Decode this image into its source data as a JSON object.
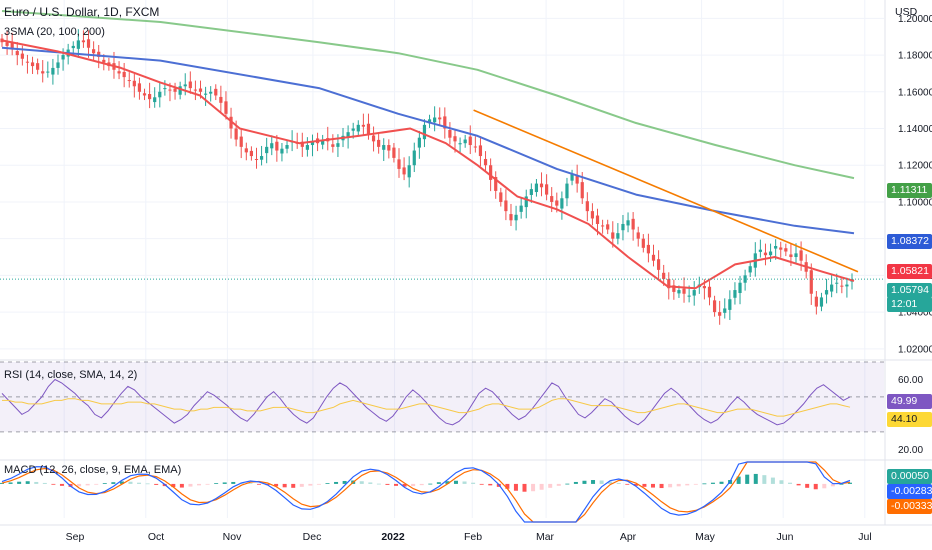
{
  "header": {
    "title": "Euro / U.S. Dollar, 1D, FXCM",
    "indicator": "3SMA (20, 100, 200)",
    "currency": "USD"
  },
  "chart_data": [
    {
      "type": "candlestick",
      "title": "Euro / U.S. Dollar, 1D, FXCM",
      "ylabel": "USD",
      "ylim": [
        1.015,
        1.21
      ],
      "y_ticks": [
        "1.02000",
        "1.04000",
        "1.06000",
        "1.08000",
        "1.10000",
        "1.12000",
        "1.14000",
        "1.16000",
        "1.18000",
        "1.20000"
      ],
      "x_ticks": [
        "Sep",
        "Oct",
        "Nov",
        "Dec",
        "2022",
        "Feb",
        "Mar",
        "Apr",
        "May",
        "Jun",
        "Jul"
      ],
      "colors": {
        "up": "#26a69a",
        "down": "#ef5350",
        "sma20": "#f0504f",
        "sma100": "#4c6fd4",
        "sma200": "#88c98a",
        "trendline": "#f57c00"
      },
      "close_series": [
        1.187,
        1.185,
        1.183,
        1.18,
        1.178,
        1.176,
        1.174,
        1.172,
        1.17,
        1.171,
        1.173,
        1.176,
        1.18,
        1.183,
        1.185,
        1.188,
        1.187,
        1.184,
        1.181,
        1.179,
        1.176,
        1.174,
        1.172,
        1.17,
        1.168,
        1.166,
        1.163,
        1.16,
        1.158,
        1.156,
        1.157,
        1.16,
        1.162,
        1.161,
        1.16,
        1.163,
        1.164,
        1.162,
        1.161,
        1.16,
        1.159,
        1.16,
        1.158,
        1.154,
        1.148,
        1.14,
        1.134,
        1.13,
        1.127,
        1.125,
        1.123,
        1.125,
        1.13,
        1.132,
        1.128,
        1.129,
        1.131,
        1.133,
        1.132,
        1.13,
        1.131,
        1.133,
        1.132,
        1.134,
        1.133,
        1.13,
        1.132,
        1.136,
        1.138,
        1.14,
        1.142,
        1.141,
        1.137,
        1.133,
        1.13,
        1.131,
        1.128,
        1.124,
        1.118,
        1.115,
        1.12,
        1.128,
        1.135,
        1.142,
        1.145,
        1.146,
        1.145,
        1.14,
        1.135,
        1.133,
        1.132,
        1.134,
        1.131,
        1.13,
        1.125,
        1.12,
        1.112,
        1.106,
        1.1,
        1.095,
        1.09,
        1.093,
        1.098,
        1.103,
        1.107,
        1.11,
        1.108,
        1.104,
        1.1,
        1.098,
        1.102,
        1.11,
        1.115,
        1.11,
        1.102,
        1.095,
        1.091,
        1.088,
        1.087,
        1.085,
        1.08,
        1.083,
        1.088,
        1.09,
        1.085,
        1.08,
        1.075,
        1.072,
        1.068,
        1.063,
        1.058,
        1.053,
        1.051,
        1.052,
        1.05,
        1.049,
        1.052,
        1.055,
        1.053,
        1.048,
        1.04,
        1.038,
        1.042,
        1.047,
        1.052,
        1.056,
        1.06,
        1.065,
        1.072,
        1.074,
        1.071,
        1.073,
        1.076,
        1.074,
        1.073,
        1.07,
        1.072,
        1.068,
        1.062,
        1.05,
        1.043,
        1.048,
        1.052,
        1.055,
        1.056,
        1.054,
        1.055,
        1.058
      ],
      "sma20": [
        [
          0,
          1.188
        ],
        [
          14,
          1.182
        ],
        [
          30,
          1.173
        ],
        [
          40,
          1.165
        ],
        [
          50,
          1.158
        ],
        [
          60,
          1.14
        ],
        [
          75,
          1.132
        ],
        [
          90,
          1.136
        ],
        [
          103,
          1.14
        ],
        [
          112,
          1.132
        ],
        [
          120,
          1.12
        ],
        [
          130,
          1.103
        ],
        [
          140,
          1.096
        ],
        [
          148,
          1.088
        ],
        [
          158,
          1.07
        ],
        [
          168,
          1.054
        ],
        [
          175,
          1.053
        ],
        [
          185,
          1.066
        ],
        [
          195,
          1.07
        ],
        [
          207,
          1.062
        ],
        [
          215,
          1.057
        ]
      ],
      "sma100": [
        [
          0,
          1.184
        ],
        [
          40,
          1.177
        ],
        [
          80,
          1.162
        ],
        [
          100,
          1.148
        ],
        [
          120,
          1.136
        ],
        [
          140,
          1.118
        ],
        [
          160,
          1.104
        ],
        [
          180,
          1.095
        ],
        [
          200,
          1.087
        ],
        [
          215,
          1.083
        ]
      ],
      "sma200": [
        [
          0,
          1.204
        ],
        [
          40,
          1.198
        ],
        [
          80,
          1.187
        ],
        [
          100,
          1.181
        ],
        [
          120,
          1.172
        ],
        [
          140,
          1.158
        ],
        [
          160,
          1.143
        ],
        [
          180,
          1.131
        ],
        [
          200,
          1.12
        ],
        [
          215,
          1.113
        ]
      ],
      "trendline": {
        "start": [
          119,
          1.15
        ],
        "end": [
          216,
          1.062
        ]
      },
      "price_tags": [
        {
          "value": "1.11311",
          "y": 1.11311,
          "color": "#43a047"
        },
        {
          "value": "1.08372",
          "y": 1.08372,
          "color": "#2d5bd6"
        },
        {
          "value": "1.05821",
          "y": 1.05821,
          "color": "#f23645"
        },
        {
          "value": "1.05794",
          "y": 1.05794,
          "color": "#26a69a"
        },
        {
          "value": "12:01",
          "y": 1.054,
          "color": "#26a69a"
        }
      ]
    },
    {
      "type": "line",
      "title": "RSI (14, close, SMA, 14, 2)",
      "ylim": [
        15,
        70
      ],
      "y_ticks": [
        "60.00",
        "20.00"
      ],
      "bands": [
        70,
        50,
        30
      ],
      "series": [
        {
          "name": "RSI",
          "color": "#7e57c2",
          "values": [
            52,
            48,
            44,
            40,
            42,
            46,
            50,
            56,
            60,
            58,
            55,
            52,
            48,
            45,
            40,
            38,
            42,
            47,
            52,
            56,
            54,
            50,
            47,
            44,
            41,
            38,
            35,
            37,
            40,
            45,
            49,
            53,
            51,
            48,
            45,
            41,
            38,
            36,
            40,
            45,
            50,
            53,
            49,
            44,
            40,
            37,
            35,
            38,
            44,
            50,
            55,
            58,
            56,
            52,
            48,
            44,
            41,
            38,
            36,
            39,
            44,
            50,
            54,
            51,
            47,
            42,
            38,
            35,
            34,
            36,
            40,
            46,
            52,
            55,
            53,
            49,
            44,
            40,
            37,
            39,
            43,
            48,
            53,
            58,
            56,
            50,
            45,
            40,
            38,
            41,
            45,
            49,
            47,
            43,
            39,
            36,
            34,
            37,
            42,
            47,
            52,
            55,
            52,
            48,
            44,
            40,
            37,
            35,
            37,
            41,
            46,
            50,
            47,
            43,
            40,
            38,
            36,
            34,
            35,
            38,
            42,
            46,
            51,
            55,
            57,
            54,
            51,
            48,
            49.99
          ]
        },
        {
          "name": "SMA",
          "color": "#f7c948",
          "values": [
            48,
            48,
            47,
            47,
            46,
            46,
            46,
            47,
            48,
            48,
            49,
            49,
            48,
            48,
            47,
            46,
            46,
            46,
            46,
            47,
            47,
            47,
            46,
            46,
            45,
            44,
            43,
            43,
            42,
            42,
            43,
            43,
            44,
            44,
            44,
            43,
            43,
            42,
            42,
            42,
            43,
            44,
            44,
            44,
            43,
            42,
            41,
            41,
            42,
            43,
            44,
            46,
            47,
            48,
            47,
            46,
            45,
            44,
            43,
            43,
            43,
            44,
            45,
            46,
            46,
            45,
            44,
            43,
            42,
            41,
            41,
            42,
            43,
            45,
            46,
            46,
            45,
            44,
            43,
            43,
            43,
            44,
            46,
            48,
            49,
            49,
            48,
            47,
            46,
            45,
            45,
            45,
            45,
            44,
            43,
            42,
            41,
            41,
            42,
            43,
            44,
            45,
            46,
            46,
            45,
            44,
            43,
            42,
            41,
            41,
            42,
            43,
            43,
            43,
            42,
            41,
            40,
            39,
            39,
            40,
            41,
            42,
            43,
            44,
            45,
            46,
            46,
            45,
            44.1
          ]
        }
      ],
      "value_tags": [
        {
          "value": "49.99",
          "color": "#7e57c2"
        },
        {
          "value": "44.10",
          "color": "#fdd835"
        }
      ]
    },
    {
      "type": "bar",
      "title": "MACD (12, 26, close, 9, EMA, EMA)",
      "ylim": [
        -0.014,
        0.009
      ],
      "series": [
        {
          "name": "Histogram",
          "values": [
            0.0004,
            0.0006,
            0.0009,
            0.0011,
            0.0008,
            0.0004,
            -0.0003,
            -0.0008,
            -0.0012,
            -0.001,
            -0.0006,
            -0.0002,
            0.0003,
            0.0007,
            0.001,
            0.0009,
            0.0005,
            0.0002,
            -0.0004,
            -0.0009,
            -0.0013,
            -0.0015,
            -0.0011,
            -0.0006,
            -0.0002,
            0.0003,
            0.0006,
            0.0008,
            0.0006,
            0.0003,
            -0.0001,
            -0.0005,
            -0.001,
            -0.0014,
            -0.0016,
            -0.0012,
            -0.0007,
            -0.0002,
            0.0003,
            0.0008,
            0.0012,
            0.0014,
            0.0011,
            0.0006,
            0.0001,
            -0.0004,
            -0.0008,
            -0.0011,
            -0.0009,
            -0.0005,
            0.0001,
            0.0007,
            0.0011,
            0.0013,
            0.001,
            0.0005,
            -0.0001,
            -0.0006,
            -0.0012,
            -0.002,
            -0.0028,
            -0.0032,
            -0.003,
            -0.0024,
            -0.0016,
            -0.0008,
            0.0001,
            0.0008,
            0.0013,
            0.0016,
            0.0014,
            0.001,
            0.0004,
            -0.0002,
            -0.0008,
            -0.0012,
            -0.0015,
            -0.0017,
            -0.0014,
            -0.001,
            -0.0006,
            -0.0002,
            0.0002,
            0.0005,
            0.0009,
            0.0016,
            0.003,
            0.0038,
            0.0041,
            0.0036,
            0.0026,
            0.0015,
            0.0005,
            -0.0006,
            -0.0016,
            -0.0022,
            -0.0018,
            -0.001,
            0.0,
            0.0005
          ]
        },
        {
          "name": "MACD",
          "color": "#2962ff"
        },
        {
          "name": "Signal",
          "color": "#ff6d00"
        }
      ],
      "value_tags": [
        {
          "value": "0.00050",
          "color": "#26a69a"
        },
        {
          "value": "-0.00283",
          "color": "#2962ff"
        },
        {
          "value": "-0.00333",
          "color": "#ff6d00"
        }
      ]
    }
  ],
  "panes": {
    "rsi_label": "RSI (14, close, SMA, 14, 2)",
    "macd_label": "MACD (12, 26, close, 9, EMA, EMA)"
  }
}
